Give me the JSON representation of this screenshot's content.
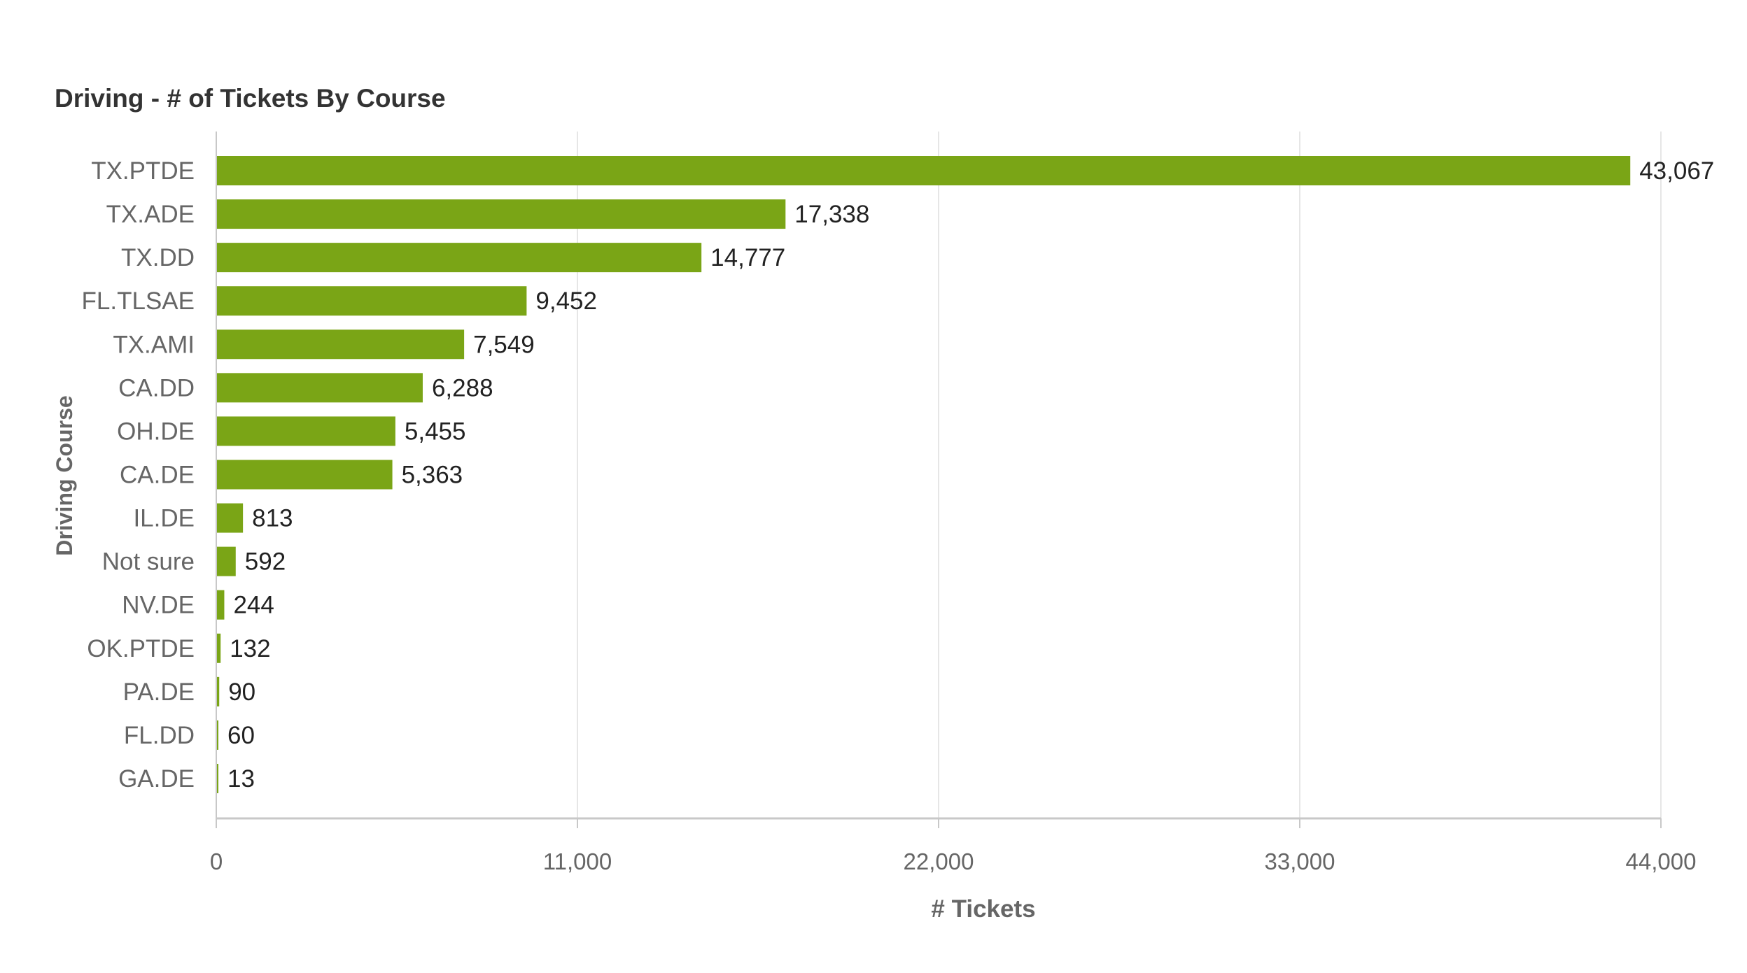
{
  "chart_data": {
    "type": "bar",
    "orientation": "horizontal",
    "title": "Driving - # of Tickets By Course",
    "xlabel": "# Tickets",
    "ylabel": "Driving Course",
    "categories": [
      "TX.PTDE",
      "TX.ADE",
      "TX.DD",
      "FL.TLSAE",
      "TX.AMI",
      "CA.DD",
      "OH.DE",
      "CA.DE",
      "IL.DE",
      "Not sure",
      "NV.DE",
      "OK.PTDE",
      "PA.DE",
      "FL.DD",
      "GA.DE"
    ],
    "values": [
      43067,
      17338,
      14777,
      9452,
      7549,
      6288,
      5455,
      5363,
      813,
      592,
      244,
      132,
      90,
      60,
      13
    ],
    "value_labels": [
      "43,067",
      "17,338",
      "14,777",
      "9,452",
      "7,549",
      "6,288",
      "5,455",
      "5,363",
      "813",
      "592",
      "244",
      "132",
      "90",
      "60",
      "13"
    ],
    "xlim": [
      0,
      44000
    ],
    "x_ticks": [
      0,
      11000,
      22000,
      33000,
      44000
    ],
    "x_tick_labels": [
      "0",
      "11,000",
      "22,000",
      "33,000",
      "44,000"
    ],
    "grid": "vertical",
    "legend": "none",
    "colors": {
      "bar": "#7aa516",
      "grid": "#e6e6e6",
      "axis": "#c8c8c8",
      "category_label": "#666666",
      "value_label": "#222222",
      "title": "#333333",
      "axis_title": "#666666"
    }
  }
}
